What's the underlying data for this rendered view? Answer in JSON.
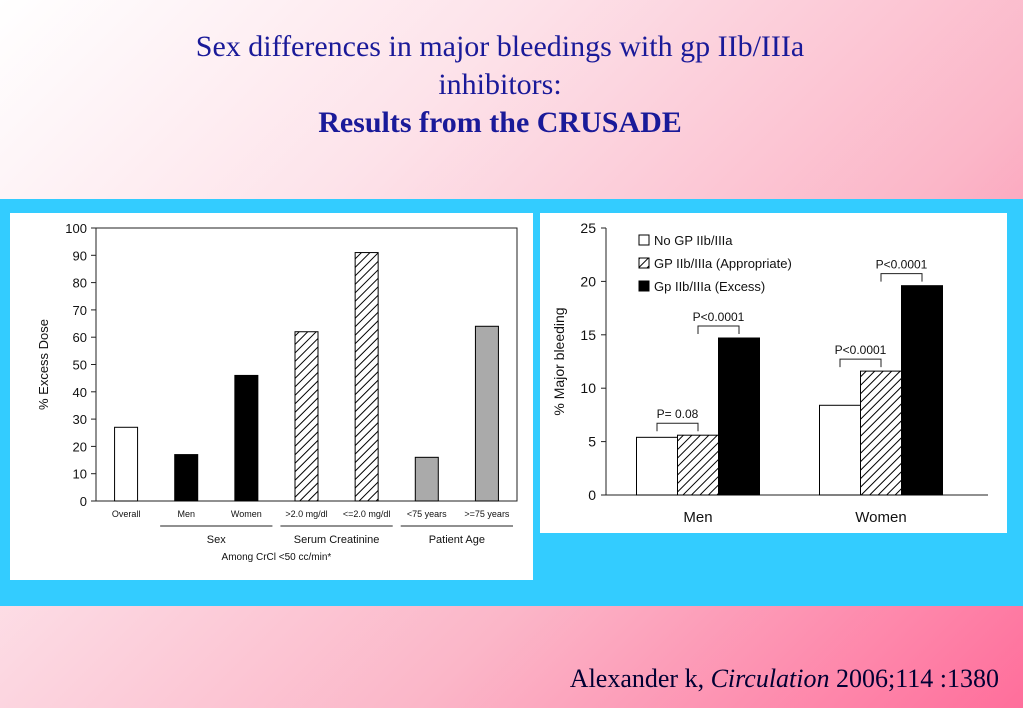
{
  "slide": {
    "title_line1": "Sex differences in major bleedings with gp IIb/IIIa",
    "title_line2": "inhibitors:",
    "title_line3": "Results from the CRUSADE",
    "citation_author": "Alexander k,",
    "citation_journal": "Circulation",
    "citation_ref": "2006;114 :1380"
  },
  "colors": {
    "band": "#33ccff",
    "title": "#1a1a99",
    "black_bar": "#000000",
    "grey_bar": "#aaaaaa",
    "white_bar": "#ffffff"
  },
  "chart_data": [
    {
      "type": "bar",
      "ylabel": "% Excess Dose",
      "ylim": [
        0,
        100
      ],
      "yticks": [
        0,
        10,
        20,
        30,
        40,
        50,
        60,
        70,
        80,
        90,
        100
      ],
      "categories": [
        "Overall",
        "Men",
        "Women",
        ">2.0 mg/dl",
        "<=2.0 mg/dl",
        "<75 years",
        ">=75 years"
      ],
      "values": [
        27,
        17,
        46,
        62,
        91,
        16,
        64
      ],
      "fills": [
        "white",
        "black",
        "black",
        "hatch",
        "hatch",
        "grey",
        "grey"
      ],
      "groups": [
        {
          "label": "Sex",
          "categories": [
            "Men",
            "Women"
          ]
        },
        {
          "label": "Serum Creatinine",
          "categories": [
            ">2.0 mg/dl",
            "<=2.0 mg/dl"
          ]
        },
        {
          "label": "Patient Age",
          "categories": [
            "<75 years",
            ">=75 years"
          ]
        }
      ],
      "footnote": "Among CrCl <50 cc/min*",
      "grid": false
    },
    {
      "type": "bar",
      "ylabel": "% Major bleeding",
      "ylim": [
        0,
        25
      ],
      "yticks": [
        0,
        5,
        10,
        15,
        20,
        25
      ],
      "categories": [
        "Men",
        "Women"
      ],
      "series": [
        {
          "name": "No GP IIb/IIIa",
          "values": [
            5.4,
            8.4
          ],
          "fill": "white"
        },
        {
          "name": "GP IIb/IIIa (Appropriate)",
          "values": [
            5.6,
            11.6
          ],
          "fill": "hatch"
        },
        {
          "name": "Gp IIb/IIIa (Excess)",
          "values": [
            14.7,
            19.6
          ],
          "fill": "black"
        }
      ],
      "annotations": [
        {
          "label": "P= 0.08",
          "category": "Men",
          "from_series": 0,
          "to_series": 1
        },
        {
          "label": "P<0.0001",
          "category": "Men",
          "from_series": 1,
          "to_series": 2
        },
        {
          "label": "P<0.0001",
          "category": "Women",
          "from_series": 0,
          "to_series": 1
        },
        {
          "label": "P<0.0001",
          "category": "Women",
          "from_series": 1,
          "to_series": 2
        }
      ],
      "legend": "top-left",
      "grid": false
    }
  ]
}
